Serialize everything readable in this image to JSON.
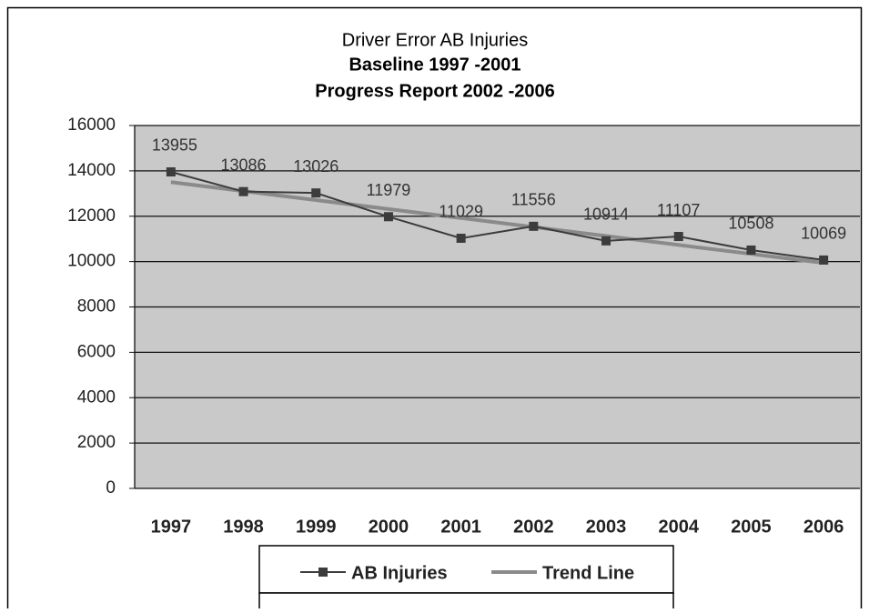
{
  "chart_data": {
    "type": "line",
    "title": [
      "Driver Error AB Injuries",
      "Baseline 1997 -2001",
      "Progress Report 2002 -2006"
    ],
    "categories": [
      "1997",
      "1998",
      "1999",
      "2000",
      "2001",
      "2002",
      "2003",
      "2004",
      "2005",
      "2006"
    ],
    "series": [
      {
        "name": "AB Injuries",
        "color": "#3c3c3c",
        "marker": "square",
        "values": [
          13955,
          13086,
          13026,
          11979,
          11029,
          11556,
          10914,
          11107,
          10508,
          10069
        ],
        "data_labels": true
      },
      {
        "name": "Trend Line",
        "color": "#8a8a8a",
        "values": [
          13503,
          13108,
          12712,
          12316,
          11921,
          11525,
          11129,
          10734,
          10338,
          9942
        ]
      }
    ],
    "ylim": [
      0,
      16000
    ],
    "yticks": [
      0,
      2000,
      4000,
      6000,
      8000,
      10000,
      12000,
      14000,
      16000
    ],
    "grid": true,
    "legend": "bottom"
  }
}
